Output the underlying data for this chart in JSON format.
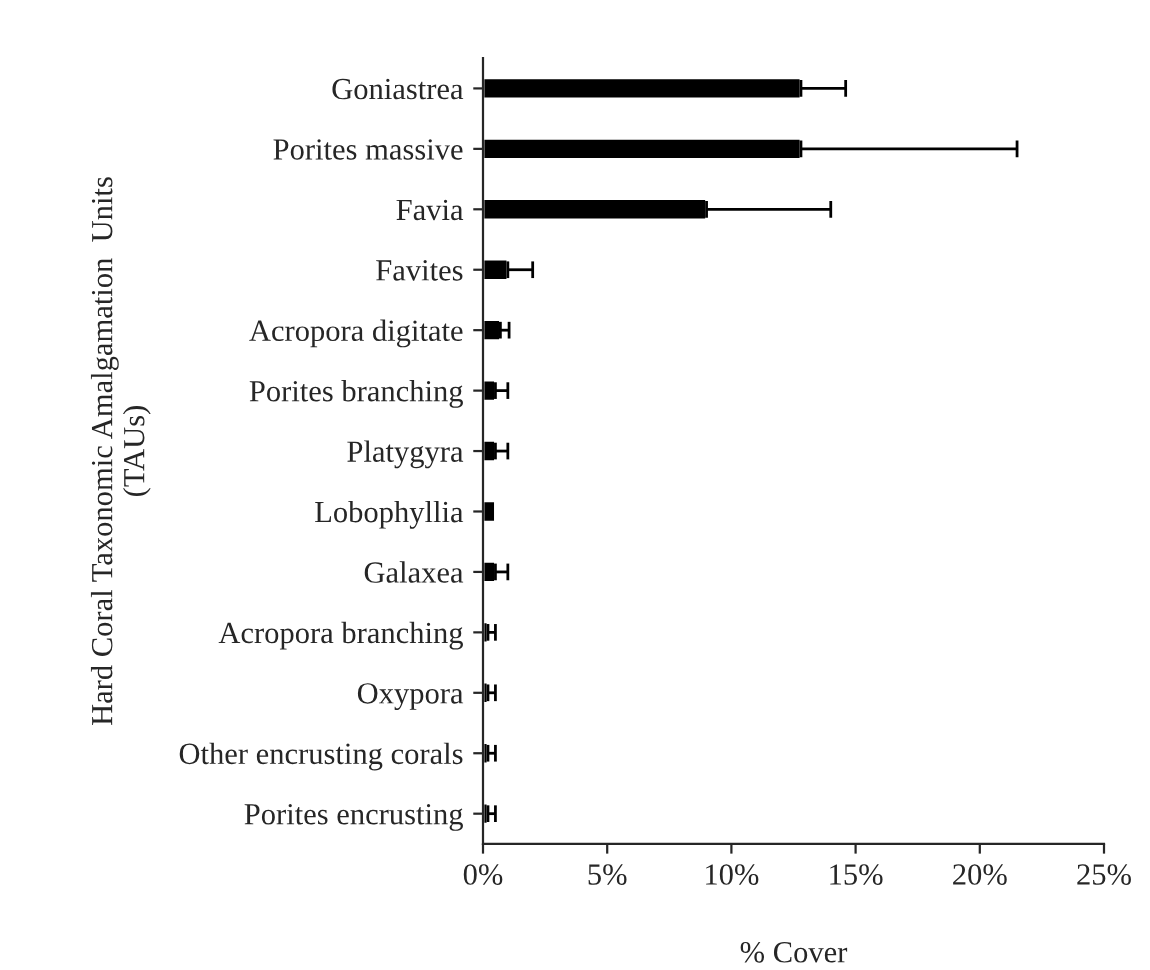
{
  "chart_data": {
    "type": "bar",
    "orientation": "horizontal",
    "xlabel": "% Cover",
    "ylabel": "Hard Coral Taxonomic Amalgamation  Units\n(TAUs)",
    "categories": [
      "Goniastrea",
      "Porites massive",
      "Favia",
      "Favites",
      "Acropora digitate",
      "Porites branching",
      "Platygyra",
      "Lobophyllia",
      "Galaxea",
      "Acropora branching",
      "Oxypora",
      "Other encrusting corals",
      "Porites encrusting"
    ],
    "series": [
      {
        "color": "#000000",
        "values": [
          12.8,
          12.8,
          9.0,
          1.0,
          0.7,
          0.5,
          0.5,
          0.5,
          0.5,
          0.2,
          0.2,
          0.2,
          0.2
        ],
        "errors": [
          [
            12.8,
            14.6
          ],
          [
            12.8,
            21.5
          ],
          [
            9.0,
            14.0
          ],
          [
            1.0,
            2.0
          ],
          [
            0.7,
            1.05
          ],
          [
            0.5,
            1.0
          ],
          [
            0.5,
            1.0
          ],
          null,
          [
            0.5,
            1.0
          ],
          [
            0.2,
            0.5
          ],
          [
            0.2,
            0.5
          ],
          [
            0.2,
            0.5
          ],
          [
            0.2,
            0.5
          ]
        ]
      }
    ],
    "xlim": [
      0,
      25
    ],
    "xticks": [
      {
        "value": 0,
        "label": "0%"
      },
      {
        "value": 5,
        "label": "5%"
      },
      {
        "value": 10,
        "label": "10%"
      },
      {
        "value": 15,
        "label": "15%"
      },
      {
        "value": 20,
        "label": "20%"
      },
      {
        "value": 25,
        "label": "25%"
      }
    ],
    "grid": false,
    "legend": false
  }
}
